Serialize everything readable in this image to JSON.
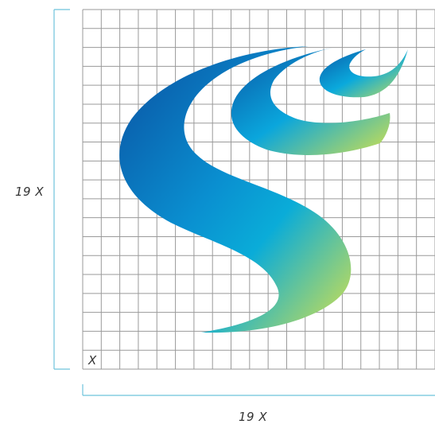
{
  "dimensions": {
    "vertical_label": "19 X",
    "horizontal_label": "19 X",
    "unit_cell_label": "X"
  },
  "grid": {
    "cells": 19
  },
  "colors": {
    "grid_line": "#9a9a9a",
    "dimension_line": "#6ec3dc",
    "logo_dark_blue": "#0a5aa8",
    "logo_cyan": "#0aa7dc",
    "logo_yellow": "#d4e04a"
  },
  "logo": {
    "icon": "stylized-s-flame-logo"
  }
}
